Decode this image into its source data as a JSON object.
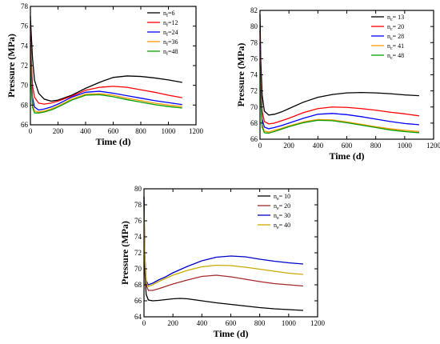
{
  "chart_data": [
    {
      "type": "line",
      "xlabel": "Time (d)",
      "ylabel": "Pressure (MPa)",
      "xlim": [
        0,
        1200
      ],
      "ylim": [
        66,
        78
      ],
      "xticks": [
        0,
        200,
        400,
        600,
        800,
        1000,
        1200
      ],
      "yticks": [
        66,
        68,
        70,
        72,
        74,
        76,
        78
      ],
      "legend_position": "top-right",
      "series": [
        {
          "name": "n",
          "subscript": "f",
          "suffix": "=6",
          "color": "#000000",
          "x": [
            0,
            5,
            15,
            30,
            60,
            100,
            150,
            200,
            300,
            400,
            500,
            600,
            700,
            800,
            900,
            1000,
            1100
          ],
          "y": [
            77.0,
            75.5,
            72.8,
            70.5,
            69.2,
            68.6,
            68.4,
            68.5,
            69.0,
            69.7,
            70.3,
            70.8,
            70.95,
            70.9,
            70.75,
            70.55,
            70.3
          ]
        },
        {
          "name": "n",
          "subscript": "f",
          "suffix": "=12",
          "color": "#ff0000",
          "x": [
            0,
            5,
            15,
            30,
            60,
            100,
            150,
            200,
            300,
            400,
            500,
            600,
            700,
            800,
            900,
            1000,
            1100
          ],
          "y": [
            76.0,
            73.0,
            70.0,
            68.8,
            68.2,
            68.1,
            68.2,
            68.4,
            68.9,
            69.5,
            69.8,
            69.9,
            69.8,
            69.55,
            69.3,
            69.0,
            68.75
          ]
        },
        {
          "name": "n",
          "subscript": "f",
          "suffix": "=24",
          "color": "#0000ff",
          "x": [
            0,
            5,
            15,
            30,
            60,
            100,
            150,
            200,
            300,
            400,
            500,
            600,
            700,
            800,
            900,
            1000,
            1100
          ],
          "y": [
            75.0,
            71.5,
            68.8,
            67.8,
            67.5,
            67.6,
            67.8,
            68.1,
            68.8,
            69.3,
            69.4,
            69.2,
            68.95,
            68.7,
            68.45,
            68.25,
            68.05
          ]
        },
        {
          "name": "n",
          "subscript": "f",
          "suffix": "=36",
          "color": "#ff9900",
          "x": [
            0,
            5,
            15,
            30,
            60,
            100,
            150,
            200,
            300,
            400,
            500,
            600,
            700,
            800,
            900,
            1000,
            1100
          ],
          "y": [
            74.5,
            70.8,
            68.2,
            67.4,
            67.3,
            67.4,
            67.6,
            67.9,
            68.6,
            69.1,
            69.15,
            69.0,
            68.7,
            68.45,
            68.2,
            68.0,
            67.85
          ]
        },
        {
          "name": "n",
          "subscript": "f",
          "suffix": "=48",
          "color": "#00a000",
          "x": [
            0,
            5,
            15,
            30,
            60,
            100,
            150,
            200,
            300,
            400,
            500,
            600,
            700,
            800,
            900,
            1000,
            1100
          ],
          "y": [
            74.0,
            70.3,
            67.8,
            67.2,
            67.2,
            67.3,
            67.5,
            67.8,
            68.5,
            69.0,
            69.05,
            68.85,
            68.55,
            68.3,
            68.05,
            67.85,
            67.7
          ]
        }
      ]
    },
    {
      "type": "line",
      "xlabel": "Time (d)",
      "ylabel": "Pressure (MPa)",
      "xlim": [
        0,
        1200
      ],
      "ylim": [
        66,
        82
      ],
      "xticks": [
        0,
        200,
        400,
        600,
        800,
        1000,
        1200
      ],
      "yticks": [
        66,
        68,
        70,
        72,
        74,
        76,
        78,
        80,
        82
      ],
      "legend_position": "top-right",
      "series": [
        {
          "name": "n",
          "subscript": "c",
          "suffix": "= 13",
          "color": "#000000",
          "x": [
            0,
            5,
            15,
            30,
            60,
            100,
            150,
            200,
            300,
            400,
            500,
            600,
            700,
            800,
            900,
            1000,
            1100
          ],
          "y": [
            81.5,
            76.0,
            71.5,
            69.5,
            69.0,
            69.1,
            69.4,
            69.8,
            70.6,
            71.2,
            71.55,
            71.75,
            71.8,
            71.75,
            71.65,
            71.5,
            71.4
          ]
        },
        {
          "name": "n",
          "subscript": "c",
          "suffix": "= 20",
          "color": "#ff0000",
          "x": [
            0,
            5,
            15,
            30,
            60,
            100,
            150,
            200,
            300,
            400,
            500,
            600,
            700,
            800,
            900,
            1000,
            1100
          ],
          "y": [
            79.5,
            73.5,
            69.5,
            68.2,
            67.9,
            68.0,
            68.3,
            68.6,
            69.3,
            69.8,
            70.0,
            69.95,
            69.8,
            69.6,
            69.35,
            69.15,
            68.9
          ]
        },
        {
          "name": "n",
          "subscript": "c",
          "suffix": "= 28",
          "color": "#0000ff",
          "x": [
            0,
            5,
            15,
            30,
            60,
            100,
            150,
            200,
            300,
            400,
            500,
            600,
            700,
            800,
            900,
            1000,
            1100
          ],
          "y": [
            78.0,
            72.5,
            68.5,
            67.5,
            67.3,
            67.45,
            67.7,
            68.0,
            68.6,
            69.1,
            69.2,
            69.05,
            68.8,
            68.5,
            68.2,
            67.95,
            67.8
          ]
        },
        {
          "name": "n",
          "subscript": "c",
          "suffix": "= 41",
          "color": "#ff9900",
          "x": [
            0,
            5,
            15,
            30,
            60,
            100,
            150,
            200,
            300,
            400,
            500,
            600,
            700,
            800,
            900,
            1000,
            1100
          ],
          "y": [
            76.5,
            71.5,
            67.8,
            67.0,
            66.9,
            67.1,
            67.35,
            67.65,
            68.15,
            68.45,
            68.4,
            68.15,
            67.85,
            67.55,
            67.3,
            67.1,
            66.95
          ]
        },
        {
          "name": "n",
          "subscript": "c",
          "suffix": "= 48",
          "color": "#00a000",
          "x": [
            0,
            5,
            15,
            30,
            60,
            100,
            150,
            200,
            300,
            400,
            500,
            600,
            700,
            800,
            900,
            1000,
            1100
          ],
          "y": [
            75.5,
            71.0,
            67.5,
            66.8,
            66.75,
            66.95,
            67.25,
            67.55,
            68.05,
            68.35,
            68.3,
            68.05,
            67.75,
            67.45,
            67.15,
            66.95,
            66.8
          ]
        }
      ]
    },
    {
      "type": "line",
      "xlabel": "Time (d)",
      "ylabel": "Pressure (MPa)",
      "xlim": [
        0,
        1200
      ],
      "ylim": [
        64,
        80
      ],
      "xticks": [
        0,
        200,
        400,
        600,
        800,
        1000,
        1200
      ],
      "yticks": [
        64,
        66,
        68,
        70,
        72,
        74,
        76,
        78,
        80
      ],
      "legend_position": "top-right",
      "series": [
        {
          "name": "n",
          "subscript": "e",
          "suffix": "= 10",
          "color": "#000000",
          "x": [
            0,
            5,
            15,
            30,
            60,
            100,
            150,
            200,
            250,
            300,
            400,
            500,
            600,
            700,
            800,
            900,
            1000,
            1100
          ],
          "y": [
            78.5,
            70.0,
            66.8,
            66.1,
            66.0,
            66.05,
            66.15,
            66.25,
            66.3,
            66.25,
            66.0,
            65.75,
            65.55,
            65.35,
            65.15,
            65.0,
            64.9,
            64.8
          ]
        },
        {
          "name": "n",
          "subscript": "e",
          "suffix": "= 20",
          "color": "#a52a2a",
          "x": [
            0,
            5,
            15,
            30,
            60,
            100,
            150,
            200,
            300,
            400,
            500,
            600,
            700,
            800,
            900,
            1000,
            1100
          ],
          "y": [
            79.0,
            71.5,
            68.0,
            67.3,
            67.3,
            67.5,
            67.8,
            68.1,
            68.6,
            69.05,
            69.2,
            69.0,
            68.7,
            68.4,
            68.15,
            68.0,
            67.85
          ]
        },
        {
          "name": "n",
          "subscript": "e",
          "suffix": "= 30",
          "color": "#0000cc",
          "x": [
            0,
            5,
            15,
            30,
            60,
            100,
            150,
            200,
            300,
            400,
            500,
            600,
            700,
            800,
            900,
            1000,
            1100
          ],
          "y": [
            79.0,
            72.0,
            68.5,
            68.0,
            68.2,
            68.6,
            69.0,
            69.5,
            70.3,
            71.0,
            71.45,
            71.6,
            71.5,
            71.2,
            70.95,
            70.75,
            70.6
          ]
        },
        {
          "name": "n",
          "subscript": "e",
          "suffix": "= 40",
          "color": "#ccaa00",
          "x": [
            0,
            5,
            15,
            30,
            60,
            100,
            150,
            200,
            300,
            400,
            500,
            600,
            700,
            800,
            900,
            1000,
            1100
          ],
          "y": [
            78.0,
            71.8,
            68.3,
            67.8,
            68.0,
            68.4,
            68.8,
            69.2,
            69.8,
            70.25,
            70.45,
            70.4,
            70.2,
            69.95,
            69.7,
            69.45,
            69.3
          ]
        }
      ]
    }
  ]
}
